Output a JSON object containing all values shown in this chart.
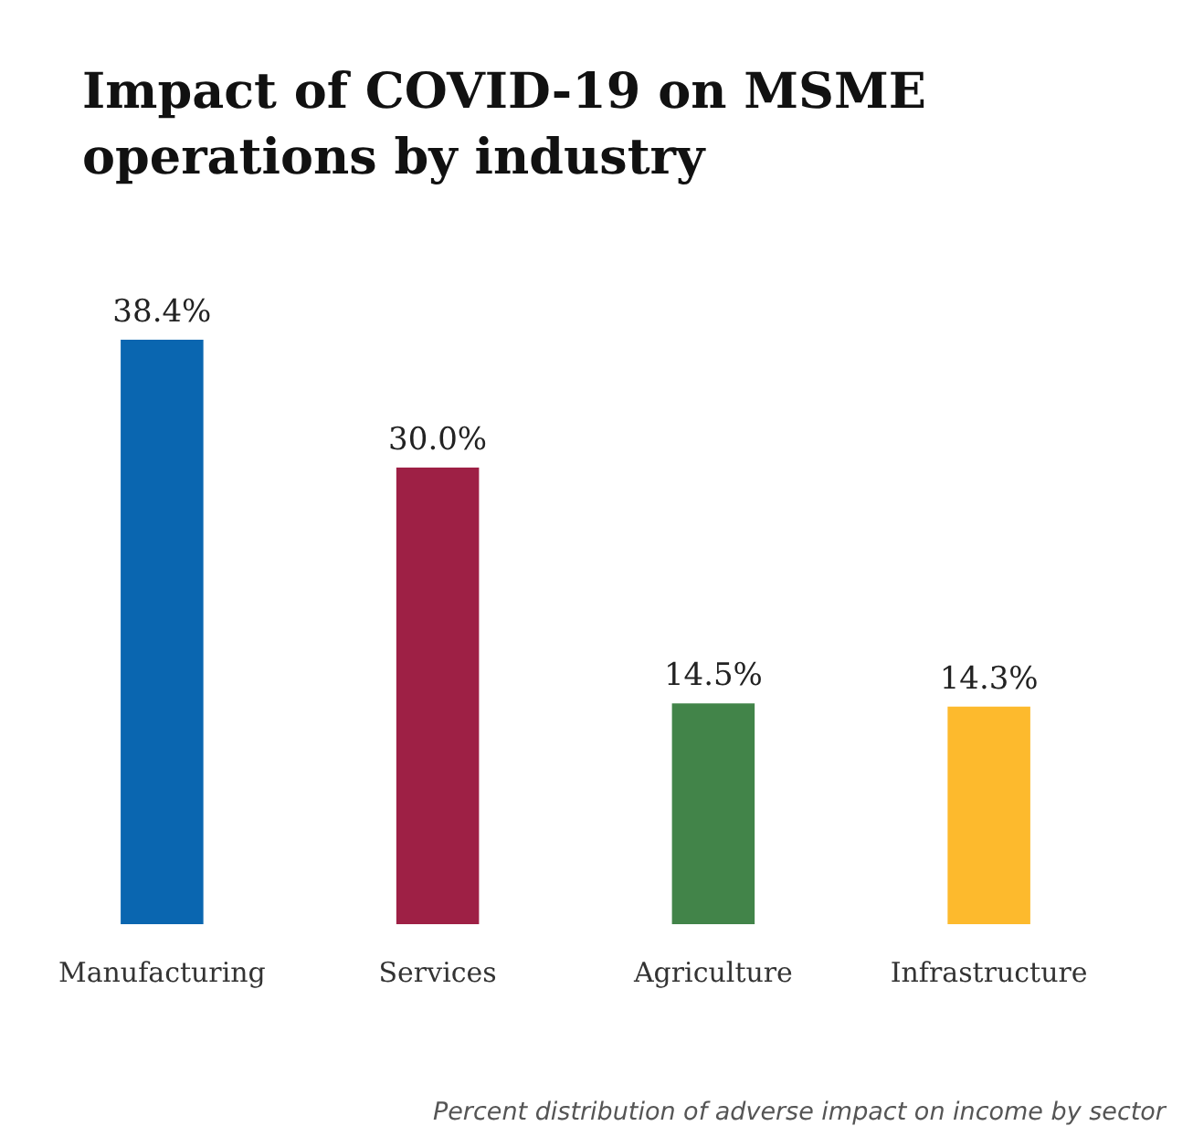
{
  "chart_data": {
    "type": "bar",
    "title": "Impact of COVID-19 on MSME operations by industry",
    "categories": [
      "Manufacturing",
      "Services",
      "Agriculture",
      "Infrastructure"
    ],
    "values": [
      38.4,
      30.0,
      14.5,
      14.3
    ],
    "colors": [
      "#0a66b0",
      "#9e2045",
      "#428449",
      "#fdba2d"
    ],
    "value_labels": [
      "38.4%",
      "30.0%",
      "14.5%",
      "14.3%"
    ],
    "annotations": [
      "Percent distribution of adverse impact on income by sector"
    ]
  }
}
